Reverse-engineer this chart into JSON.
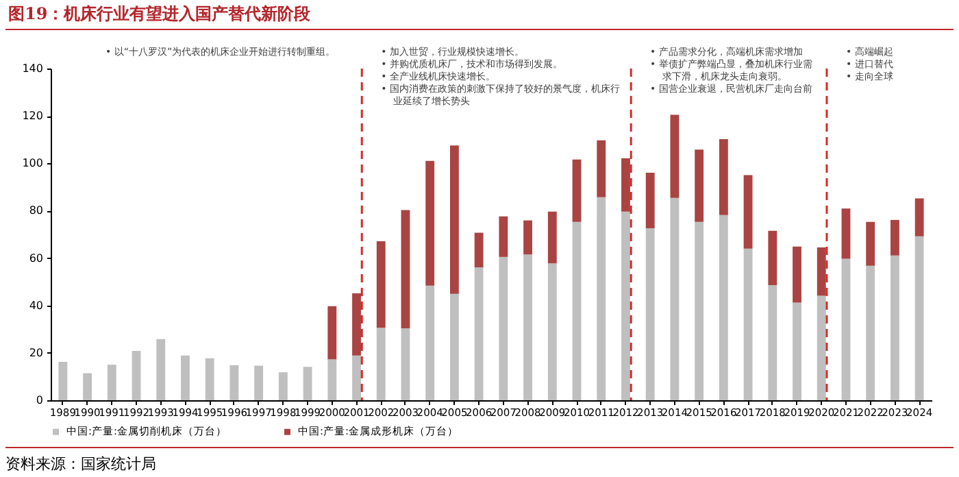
{
  "chart_data": {
    "type": "bar",
    "title": "图19：机床行业有望进入国产替代新阶段",
    "stacked": true,
    "legend": "bottom",
    "grid": false,
    "categories": [
      "1989",
      "1990",
      "1991",
      "1992",
      "1993",
      "1994",
      "1995",
      "1996",
      "1997",
      "1998",
      "1999",
      "2000",
      "2001",
      "2002",
      "2003",
      "2004",
      "2005",
      "2006",
      "2007",
      "2008",
      "2009",
      "2010",
      "2011",
      "2012",
      "2013",
      "2014",
      "2015",
      "2016",
      "2017",
      "2018",
      "2019",
      "2020",
      "2021",
      "2022",
      "2023",
      "2024"
    ],
    "series": [
      {
        "name": "中国:产量:金属切削机床（万台）",
        "color": "#bfbfbf",
        "values": [
          16.2,
          11.4,
          15,
          20.8,
          25.8,
          18.9,
          17.7,
          14.8,
          14.6,
          11.8,
          14.1,
          17.3,
          18.9,
          30.6,
          30.4,
          48.4,
          44.9,
          56.1,
          60.5,
          61.5,
          57.8,
          75.3,
          85.7,
          79.6,
          72.6,
          85.4,
          75.3,
          78.2,
          64,
          48.6,
          41.2,
          44.1,
          59.7,
          56.8,
          61.1,
          69.2
        ]
      },
      {
        "name": "中国:产量:金属成形机床（万台）",
        "color": "#a94442",
        "values": [
          null,
          null,
          null,
          null,
          null,
          null,
          null,
          null,
          null,
          null,
          null,
          22.4,
          26.2,
          36.5,
          49.9,
          52.6,
          62.6,
          14.6,
          17.1,
          14.4,
          21.8,
          26.3,
          24,
          22.5,
          23.4,
          35.1,
          30.5,
          32,
          31,
          22.9,
          23.7,
          20.4,
          21.2,
          18.5,
          15,
          16
        ]
      }
    ],
    "ylim": [
      0,
      140
    ],
    "yticks": [
      0,
      20,
      40,
      60,
      80,
      100,
      120,
      140
    ],
    "ref_lines": [
      {
        "axis": "x",
        "value": "2001",
        "color": "#d42a2a",
        "line_style": "dashed"
      },
      {
        "axis": "x",
        "value": "2012",
        "color": "#d42a2a",
        "line_style": "dashed"
      },
      {
        "axis": "x",
        "value": "2020",
        "color": "#d42a2a",
        "line_style": "dashed"
      }
    ],
    "annotations": [
      "•  以“十八罗汉”为代表的机床企业开始进行转制重组。",
      "•  加入世贸，行业规模快速增长。",
      "•  并购优质机床厂，技术和市场得到发展。",
      "•  全产业线机床快速增长。",
      "•  国内消费在政策的刺激下保持了较好的景气度，机床行业延续了增长势头",
      "•  产品需求分化，高端机床需求增加",
      "•  举债扩产弊端凸显，叠加机床行业需求下滑，机床龙头走向衰弱。",
      "•  国营企业衰退，民营机床厂走向台前",
      "•  高端崛起",
      "•  进口替代",
      "•  走向全球",
      "资料来源：国家统计局"
    ]
  }
}
